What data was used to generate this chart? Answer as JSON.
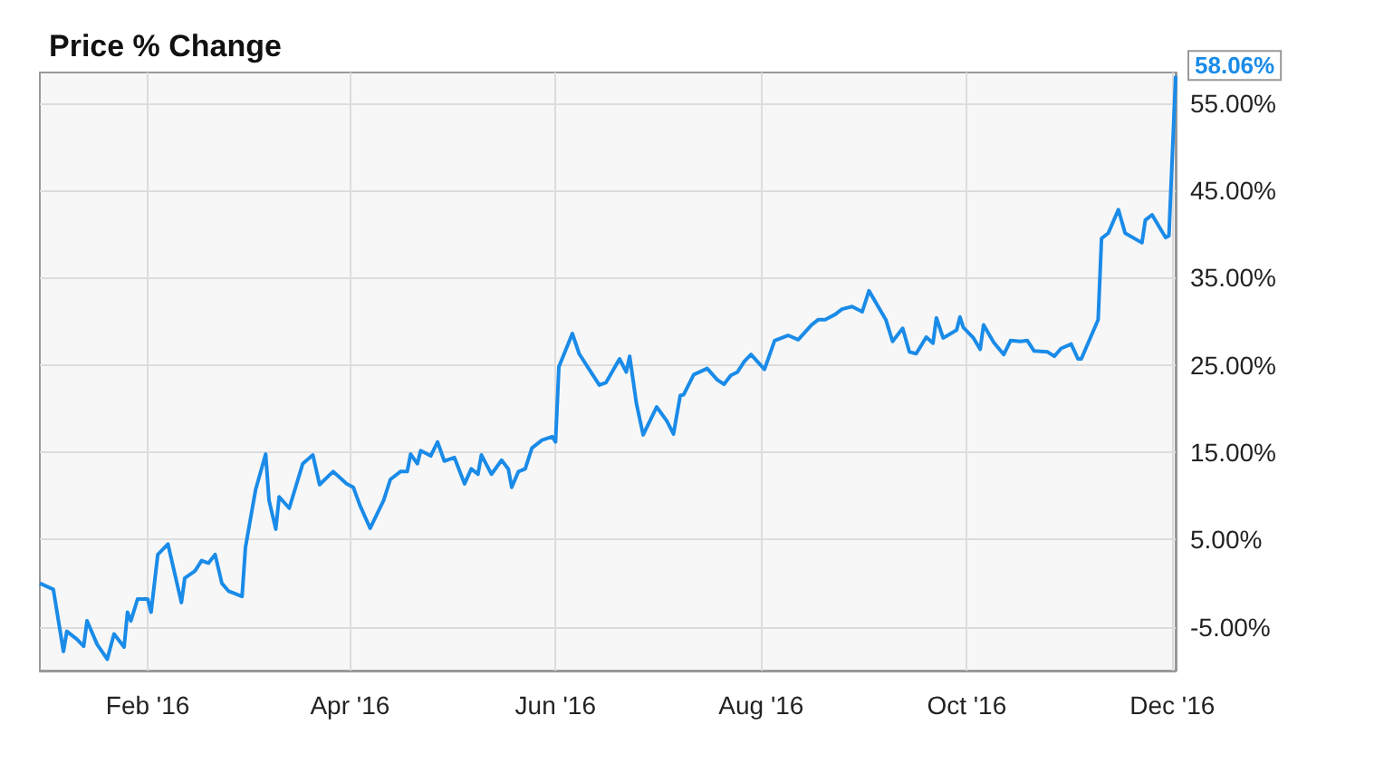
{
  "chart_data": {
    "type": "line",
    "title": "Price % Change",
    "x": [
      "2015-12-31",
      "2016-01-04",
      "2016-01-07",
      "2016-01-08",
      "2016-01-11",
      "2016-01-13",
      "2016-01-14",
      "2016-01-17",
      "2016-01-20",
      "2016-01-22",
      "2016-01-25",
      "2016-01-26",
      "2016-01-27",
      "2016-01-29",
      "2016-02-01",
      "2016-02-02",
      "2016-02-04",
      "2016-02-07",
      "2016-02-11",
      "2016-02-12",
      "2016-02-15",
      "2016-02-17",
      "2016-02-19",
      "2016-02-21",
      "2016-02-23",
      "2016-02-25",
      "2016-02-29",
      "2016-03-01",
      "2016-03-04",
      "2016-03-07",
      "2016-03-08",
      "2016-03-10",
      "2016-03-11",
      "2016-03-14",
      "2016-03-18",
      "2016-03-21",
      "2016-03-23",
      "2016-03-27",
      "2016-03-31",
      "2016-04-02",
      "2016-04-04",
      "2016-04-07",
      "2016-04-11",
      "2016-04-13",
      "2016-04-16",
      "2016-04-18",
      "2016-04-19",
      "2016-04-21",
      "2016-04-22",
      "2016-04-25",
      "2016-04-27",
      "2016-04-29",
      "2016-05-02",
      "2016-05-05",
      "2016-05-07",
      "2016-05-09",
      "2016-05-10",
      "2016-05-13",
      "2016-05-16",
      "2016-05-18",
      "2016-05-19",
      "2016-05-21",
      "2016-05-23",
      "2016-05-25",
      "2016-05-28",
      "2016-05-31",
      "2016-06-01",
      "2016-06-02",
      "2016-06-06",
      "2016-06-08",
      "2016-06-11",
      "2016-06-14",
      "2016-06-16",
      "2016-06-20",
      "2016-06-22",
      "2016-06-23",
      "2016-06-25",
      "2016-06-27",
      "2016-07-01",
      "2016-07-04",
      "2016-07-06",
      "2016-07-08",
      "2016-07-09",
      "2016-07-12",
      "2016-07-16",
      "2016-07-19",
      "2016-07-21",
      "2016-07-23",
      "2016-07-25",
      "2016-07-27",
      "2016-07-29",
      "2016-08-02",
      "2016-08-05",
      "2016-08-09",
      "2016-08-12",
      "2016-08-16",
      "2016-08-18",
      "2016-08-20",
      "2016-08-23",
      "2016-08-25",
      "2016-08-28",
      "2016-08-31",
      "2016-09-02",
      "2016-09-07",
      "2016-09-09",
      "2016-09-12",
      "2016-09-14",
      "2016-09-16",
      "2016-09-19",
      "2016-09-21",
      "2016-09-22",
      "2016-09-24",
      "2016-09-28",
      "2016-09-29",
      "2016-09-30",
      "2016-10-03",
      "2016-10-05",
      "2016-10-06",
      "2016-10-09",
      "2016-10-12",
      "2016-10-14",
      "2016-10-17",
      "2016-10-19",
      "2016-10-21",
      "2016-10-25",
      "2016-10-27",
      "2016-10-29",
      "2016-11-01",
      "2016-11-03",
      "2016-11-04",
      "2016-11-09",
      "2016-11-10",
      "2016-11-12",
      "2016-11-15",
      "2016-11-17",
      "2016-11-22",
      "2016-11-23",
      "2016-11-25",
      "2016-11-29",
      "2016-11-30",
      "2016-12-02"
    ],
    "values": [
      0,
      -0.7,
      -7.8,
      -5.5,
      -6.4,
      -7.2,
      -4.3,
      -7.0,
      -8.7,
      -5.8,
      -7.3,
      -3.3,
      -4.3,
      -1.8,
      -1.8,
      -3.3,
      3.3,
      4.5,
      -2.2,
      0.6,
      1.4,
      2.6,
      2.3,
      3.3,
      0,
      -0.9,
      -1.5,
      4.1,
      10.7,
      14.8,
      9.5,
      6.2,
      9.9,
      8.6,
      13.7,
      14.7,
      11.3,
      12.8,
      11.4,
      11.0,
      8.9,
      6.3,
      9.5,
      11.9,
      12.8,
      12.8,
      14.8,
      13.7,
      15.2,
      14.6,
      16.2,
      14.0,
      14.4,
      11.4,
      13.1,
      12.5,
      14.7,
      12.5,
      14.1,
      13.1,
      11.0,
      12.8,
      13.1,
      15.5,
      16.4,
      16.8,
      16.2,
      24.8,
      28.6,
      26.3,
      24.5,
      22.7,
      23.0,
      25.7,
      24.2,
      26.0,
      20.6,
      17.0,
      20.2,
      18.6,
      17.1,
      21.5,
      21.6,
      23.9,
      24.6,
      23.3,
      22.8,
      23.8,
      24.2,
      25.4,
      26.2,
      24.5,
      27.8,
      28.4,
      27.9,
      29.6,
      30.2,
      30.2,
      30.8,
      31.4,
      31.7,
      31.1,
      33.5,
      30.2,
      27.7,
      29.2,
      26.5,
      26.3,
      28.2,
      27.5,
      30.4,
      28.1,
      29.0,
      30.5,
      29.3,
      28.1,
      26.8,
      29.6,
      27.6,
      26.2,
      27.8,
      27.7,
      27.8,
      26.6,
      26.5,
      26.0,
      26.9,
      27.4,
      25.7,
      25.7,
      30.2,
      39.5,
      40.1,
      42.8,
      40.1,
      39.0,
      41.6,
      42.2,
      39.6,
      39.8,
      58.06
    ],
    "color": "#1a8be8",
    "xlim": [
      "2015-12-31",
      "2016-12-02"
    ],
    "xticks": [
      {
        "value": "2016-02-01",
        "label": "Feb '16"
      },
      {
        "value": "2016-04-01",
        "label": "Apr '16"
      },
      {
        "value": "2016-06-01",
        "label": "Jun '16"
      },
      {
        "value": "2016-08-01",
        "label": "Aug '16"
      },
      {
        "value": "2016-10-01",
        "label": "Oct '16"
      },
      {
        "value": "2016-12-01",
        "label": "Dec '16"
      }
    ],
    "ylim": [
      -10,
      58.5
    ],
    "yticks": [
      {
        "value": -5,
        "label": "-5.00%"
      },
      {
        "value": 5,
        "label": "5.00%"
      },
      {
        "value": 15,
        "label": "15.00%"
      },
      {
        "value": 25,
        "label": "25.00%"
      },
      {
        "value": 35,
        "label": "35.00%"
      },
      {
        "value": 45,
        "label": "45.00%"
      },
      {
        "value": 55,
        "label": "55.00%"
      }
    ],
    "annotations": [
      {
        "text": "58.06%",
        "x": "2016-12-02",
        "y": 58.06
      }
    ],
    "grid": true,
    "marker": "none",
    "line_style": "solid"
  }
}
